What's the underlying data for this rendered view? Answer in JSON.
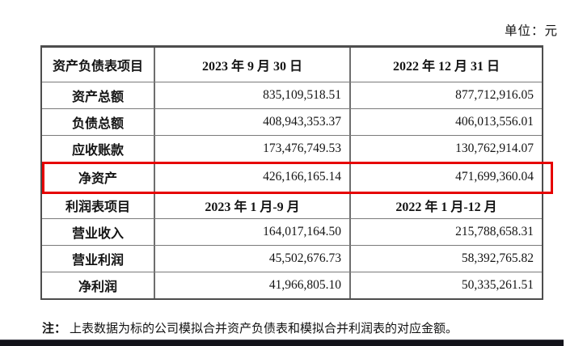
{
  "page": {
    "unit_label": "单位：元"
  },
  "colors": {
    "highlight_red": "#e60000",
    "table_border_outer": "#4d4d4d",
    "table_border_inner": "#7a7a7a",
    "bottom_bar": "#13131a",
    "text": "#141414"
  },
  "table": {
    "balance_header": {
      "item": "资产负债表项目",
      "period1": "2023 年 9 月 30 日",
      "period2": "2022 年 12 月 31 日"
    },
    "balance_rows": [
      {
        "label": "资产总额",
        "v1": "835,109,518.51",
        "v2": "877,712,916.05"
      },
      {
        "label": "负债总额",
        "v1": "408,943,353.37",
        "v2": "406,013,556.01"
      },
      {
        "label": "应收账款",
        "v1": "173,476,749.53",
        "v2": "130,762,914.07"
      },
      {
        "label": "净资产",
        "v1": "426,166,165.14",
        "v2": "471,699,360.04",
        "highlighted": true
      }
    ],
    "income_header": {
      "item": "利润表项目",
      "period1": "2023 年 1 月-9 月",
      "period2": "2022 年 1 月-12 月"
    },
    "income_rows": [
      {
        "label": "营业收入",
        "v1": "164,017,164.50",
        "v2": "215,788,658.31"
      },
      {
        "label": "营业利润",
        "v1": "45,502,676.73",
        "v2": "58,392,765.82"
      },
      {
        "label": "净利润",
        "v1": "41,966,805.10",
        "v2": "50,335,261.51"
      }
    ]
  },
  "note": {
    "prefix": "注：",
    "body": "上表数据为标的公司模拟合并资产负债表和模拟合并利润表的对应金额。"
  }
}
